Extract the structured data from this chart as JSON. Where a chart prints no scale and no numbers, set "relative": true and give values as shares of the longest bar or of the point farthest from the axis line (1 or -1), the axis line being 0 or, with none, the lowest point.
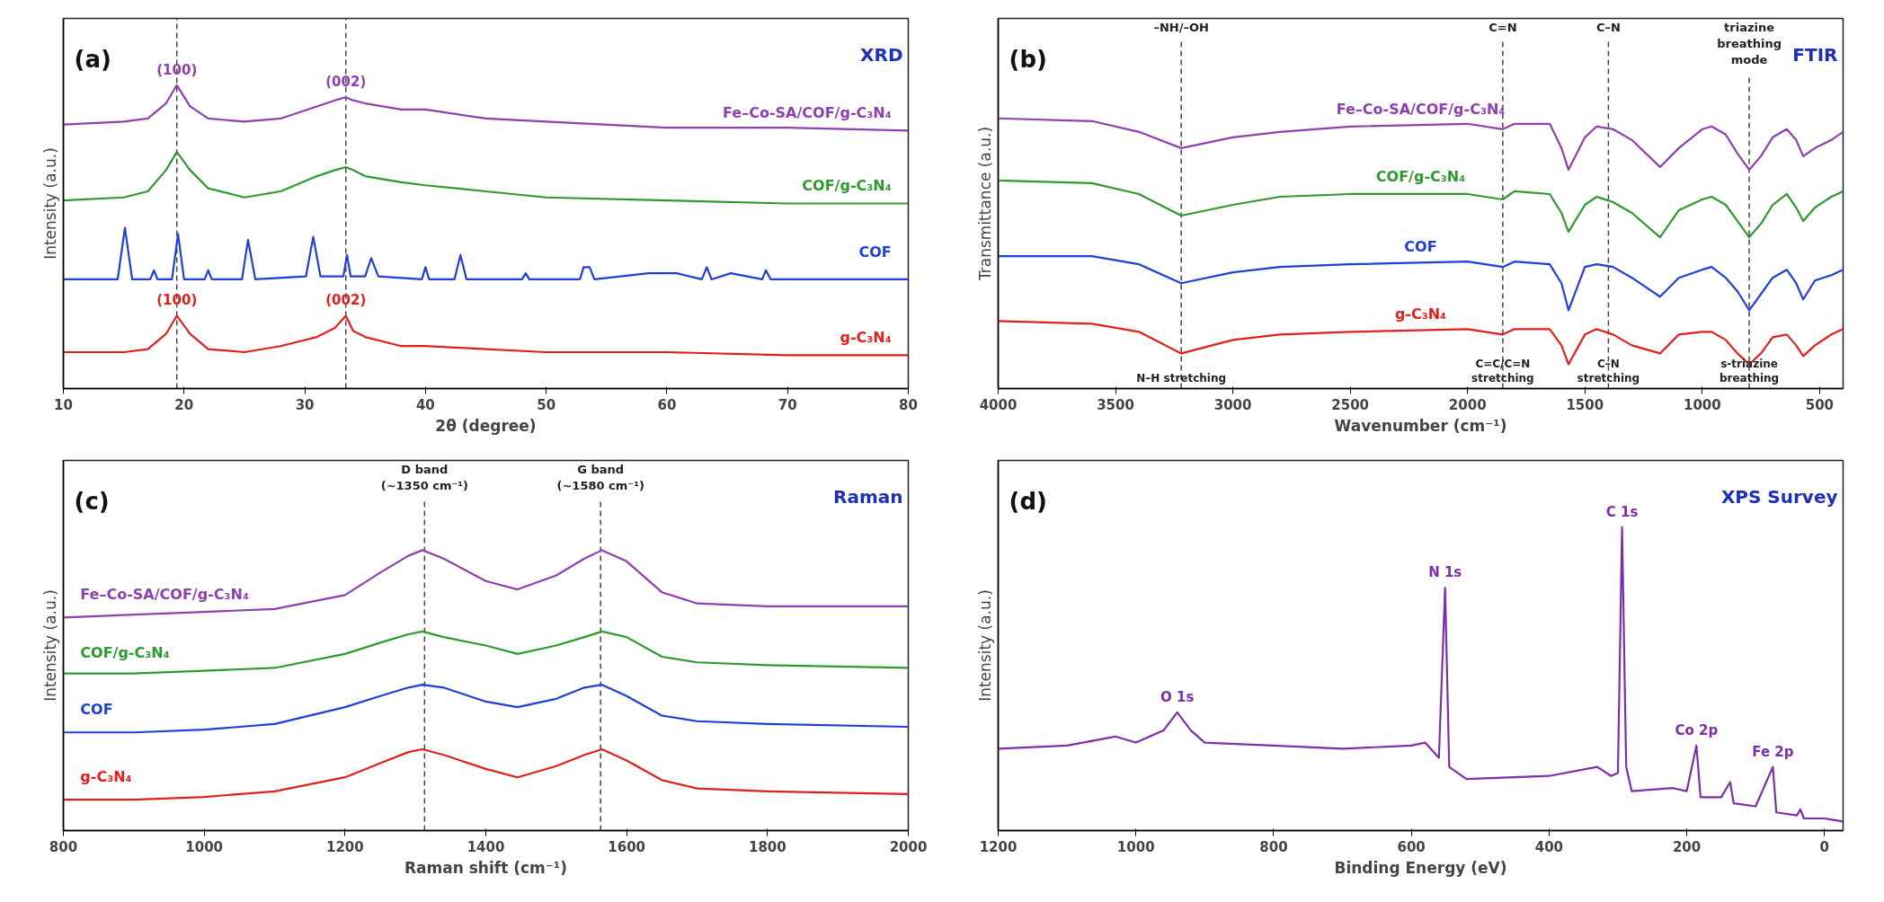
{
  "chart_data": [
    {
      "type": "line",
      "title": "XRD",
      "xlabel": "2θ (degree)",
      "ylabel": "Intensity (a.u.)",
      "relative": true,
      "xlim": [
        10,
        80
      ],
      "xticks": [
        10,
        20,
        30,
        40,
        50,
        60,
        70,
        80
      ],
      "x": [
        10,
        15,
        17,
        18.5,
        19.4,
        20.5,
        22,
        25,
        28,
        31,
        32.5,
        33.4,
        34,
        35,
        38,
        40,
        45,
        50,
        60,
        70,
        80
      ],
      "series": [
        {
          "name": "Fe–Co-SA/COF/g-C₃N₄",
          "color": "#8e3fb0",
          "values": [
            0.87,
            0.88,
            0.89,
            0.94,
            1.0,
            0.93,
            0.89,
            0.88,
            0.89,
            0.93,
            0.95,
            0.96,
            0.95,
            0.94,
            0.92,
            0.92,
            0.89,
            0.88,
            0.86,
            0.86,
            0.85
          ]
        },
        {
          "name": "COF/g-C₃N₄",
          "color": "#2e9a2e",
          "values": [
            0.62,
            0.63,
            0.65,
            0.72,
            0.78,
            0.72,
            0.66,
            0.63,
            0.65,
            0.7,
            0.72,
            0.73,
            0.72,
            0.7,
            0.68,
            0.67,
            0.65,
            0.63,
            0.62,
            0.61,
            0.61
          ]
        },
        {
          "name": "COF",
          "color": "#1f3fd6",
          "x": [
            10,
            14.5,
            15.1,
            15.7,
            17.2,
            17.5,
            17.8,
            19,
            19.5,
            20,
            21.7,
            22,
            22.3,
            24.8,
            25.3,
            25.9,
            30.1,
            30.7,
            31.3,
            33.2,
            33.5,
            33.8,
            35,
            35.5,
            36.1,
            39.7,
            40,
            40.3,
            42.4,
            42.9,
            43.4,
            48,
            48.3,
            48.6,
            52.8,
            53.1,
            53.6,
            54,
            58.5,
            60.8,
            62.9,
            63.3,
            63.7,
            65.3,
            67.9,
            68.2,
            68.6,
            80
          ],
          "values": [
            0.36,
            0.36,
            0.53,
            0.36,
            0.36,
            0.39,
            0.36,
            0.36,
            0.51,
            0.36,
            0.36,
            0.39,
            0.36,
            0.36,
            0.49,
            0.36,
            0.37,
            0.5,
            0.37,
            0.37,
            0.44,
            0.37,
            0.37,
            0.43,
            0.37,
            0.36,
            0.4,
            0.36,
            0.36,
            0.44,
            0.36,
            0.36,
            0.38,
            0.36,
            0.36,
            0.4,
            0.4,
            0.36,
            0.38,
            0.38,
            0.36,
            0.4,
            0.36,
            0.38,
            0.36,
            0.39,
            0.36,
            0.36
          ]
        },
        {
          "name": "g-C₃N₄",
          "color": "#e0201c",
          "values": [
            0.12,
            0.12,
            0.13,
            0.18,
            0.24,
            0.18,
            0.13,
            0.12,
            0.14,
            0.17,
            0.2,
            0.24,
            0.19,
            0.17,
            0.14,
            0.14,
            0.13,
            0.12,
            0.12,
            0.11,
            0.11
          ]
        }
      ],
      "ref_lines": [
        {
          "axis": "x",
          "value": 19.4,
          "color": "#444444",
          "line_style": "dashed"
        },
        {
          "axis": "x",
          "value": 33.4,
          "color": "#444444",
          "line_style": "dashed"
        }
      ],
      "annotations": [
        "(a)",
        {
          "text": "(100)",
          "x": 19.4,
          "y": 1.0
        },
        {
          "text": "(002)",
          "x": 33.4,
          "y": 0.96
        },
        {
          "text": "(100)",
          "x": 19.4,
          "y": 0.24
        },
        {
          "text": "(002)",
          "x": 33.4,
          "y": 0.24
        }
      ]
    },
    {
      "type": "line",
      "title": "FTIR",
      "xlabel": "Wavenumber (cm⁻¹)",
      "ylabel": "Transmittance (a.u.)",
      "relative": true,
      "xlim": [
        4000,
        400
      ],
      "xticks": [
        4000,
        3500,
        3000,
        2500,
        2000,
        1500,
        1000,
        500
      ],
      "x": [
        4000,
        3600,
        3400,
        3220,
        3000,
        2800,
        2500,
        2000,
        1850,
        1800,
        1650,
        1600,
        1570,
        1500,
        1450,
        1380,
        1300,
        1180,
        1100,
        1000,
        960,
        900,
        850,
        800,
        750,
        700,
        640,
        600,
        570,
        520,
        450,
        400
      ],
      "series": [
        {
          "name": "Fe–Co-SA/COF/g-C₃N₄",
          "color": "#8e3fb0",
          "values": [
            1.0,
            0.99,
            0.95,
            0.89,
            0.93,
            0.95,
            0.97,
            0.98,
            0.96,
            0.98,
            0.98,
            0.89,
            0.81,
            0.93,
            0.97,
            0.96,
            0.92,
            0.82,
            0.89,
            0.96,
            0.97,
            0.94,
            0.87,
            0.81,
            0.86,
            0.93,
            0.96,
            0.92,
            0.86,
            0.89,
            0.92,
            0.95
          ]
        },
        {
          "name": "COF/g-C₃N₄",
          "color": "#2e9a2e",
          "values": [
            0.77,
            0.76,
            0.72,
            0.64,
            0.68,
            0.71,
            0.72,
            0.72,
            0.7,
            0.73,
            0.72,
            0.65,
            0.58,
            0.68,
            0.71,
            0.69,
            0.65,
            0.56,
            0.66,
            0.7,
            0.71,
            0.68,
            0.62,
            0.56,
            0.61,
            0.68,
            0.72,
            0.67,
            0.62,
            0.67,
            0.71,
            0.73
          ]
        },
        {
          "name": "COF",
          "color": "#1f3fd6",
          "values": [
            0.49,
            0.49,
            0.46,
            0.39,
            0.43,
            0.45,
            0.46,
            0.47,
            0.45,
            0.47,
            0.46,
            0.39,
            0.29,
            0.45,
            0.46,
            0.45,
            0.41,
            0.34,
            0.41,
            0.44,
            0.45,
            0.41,
            0.36,
            0.29,
            0.35,
            0.41,
            0.44,
            0.39,
            0.33,
            0.4,
            0.42,
            0.44
          ]
        },
        {
          "name": "g-C₃N₄",
          "color": "#e0201c",
          "values": [
            0.25,
            0.24,
            0.21,
            0.13,
            0.18,
            0.2,
            0.21,
            0.22,
            0.2,
            0.22,
            0.22,
            0.16,
            0.09,
            0.2,
            0.22,
            0.2,
            0.16,
            0.13,
            0.2,
            0.21,
            0.21,
            0.18,
            0.13,
            0.09,
            0.13,
            0.19,
            0.2,
            0.16,
            0.12,
            0.16,
            0.2,
            0.22
          ]
        }
      ],
      "ref_lines": [
        {
          "axis": "x",
          "value": 3220,
          "label": "–NH/–OH",
          "color": "#444444",
          "line_style": "dashed"
        },
        {
          "axis": "x",
          "value": 1850,
          "label": "C=N",
          "color": "#444444",
          "line_style": "dashed"
        },
        {
          "axis": "x",
          "value": 1400,
          "label": "C–N",
          "color": "#444444",
          "line_style": "dashed"
        },
        {
          "axis": "x",
          "value": 800,
          "label": "triazine\nbreathing\nmode",
          "color": "#444444",
          "line_style": "dashed"
        }
      ],
      "annotations": [
        "(b)",
        {
          "text": "N–H stretching",
          "x": 3220,
          "y": 0.01
        },
        {
          "text": "C=C/C=N\nstretching",
          "x": 1850,
          "y": 0.01
        },
        {
          "text": "C–N\nstretching",
          "x": 1400,
          "y": 0.01
        },
        {
          "text": "s-triazine\nbreathing",
          "x": 800,
          "y": 0.01
        }
      ]
    },
    {
      "type": "line",
      "title": "Raman",
      "xlabel": "Raman shift (cm⁻¹)",
      "ylabel": "Intensity (a.u.)",
      "relative": true,
      "xlim": [
        800,
        2000
      ],
      "xticks": [
        800,
        1000,
        1200,
        1400,
        1600,
        1800,
        2000
      ],
      "x": [
        800,
        900,
        1000,
        1100,
        1200,
        1250,
        1290,
        1310,
        1340,
        1400,
        1445,
        1500,
        1540,
        1565,
        1600,
        1650,
        1700,
        1800,
        2000
      ],
      "series": [
        {
          "name": "Fe–Co-SA/COF/g-C₃N₄",
          "color": "#8e3fb0",
          "values": [
            0.76,
            0.77,
            0.78,
            0.79,
            0.84,
            0.92,
            0.98,
            1.0,
            0.97,
            0.89,
            0.86,
            0.91,
            0.97,
            1.0,
            0.96,
            0.85,
            0.81,
            0.8,
            0.8
          ]
        },
        {
          "name": "COF/g-C₃N₄",
          "color": "#2e9a2e",
          "values": [
            0.56,
            0.56,
            0.57,
            0.58,
            0.63,
            0.67,
            0.7,
            0.71,
            0.69,
            0.66,
            0.63,
            0.66,
            0.69,
            0.71,
            0.69,
            0.62,
            0.6,
            0.59,
            0.58
          ]
        },
        {
          "name": "COF",
          "color": "#1f3fd6",
          "values": [
            0.35,
            0.35,
            0.36,
            0.38,
            0.44,
            0.48,
            0.51,
            0.52,
            0.51,
            0.46,
            0.44,
            0.47,
            0.51,
            0.52,
            0.48,
            0.41,
            0.39,
            0.38,
            0.37
          ]
        },
        {
          "name": "g-C₃N₄",
          "color": "#e0201c",
          "values": [
            0.11,
            0.11,
            0.12,
            0.14,
            0.19,
            0.24,
            0.28,
            0.29,
            0.27,
            0.22,
            0.19,
            0.23,
            0.27,
            0.29,
            0.25,
            0.18,
            0.15,
            0.14,
            0.13
          ]
        }
      ],
      "ref_lines": [
        {
          "axis": "x",
          "value": 1313,
          "label": "D band\n(~1350 cm⁻¹)",
          "color": "#444444",
          "line_style": "dashed"
        },
        {
          "axis": "x",
          "value": 1563,
          "label": "G band\n(~1580 cm⁻¹)",
          "color": "#444444",
          "line_style": "dashed"
        }
      ],
      "annotations": [
        "(c)"
      ]
    },
    {
      "type": "line",
      "title": "XPS Survey",
      "xlabel": "Binding Energy (eV)",
      "ylabel": "Intensity (a.u.)",
      "relative": true,
      "xlim": [
        1200,
        -27
      ],
      "xticks": [
        1200,
        1000,
        800,
        600,
        400,
        200,
        0
      ],
      "x": [
        1200,
        1100,
        1030,
        1000,
        960,
        940,
        920,
        900,
        800,
        700,
        600,
        580,
        560,
        551,
        545,
        520,
        400,
        330,
        310,
        300,
        294,
        288,
        280,
        220,
        200,
        186,
        180,
        150,
        137,
        132,
        100,
        75,
        70,
        40,
        35,
        30,
        0,
        -27
      ],
      "series": [
        {
          "color": "#7b2fa8",
          "values": [
            0.27,
            0.28,
            0.31,
            0.29,
            0.33,
            0.39,
            0.33,
            0.29,
            0.28,
            0.27,
            0.28,
            0.29,
            0.24,
            0.8,
            0.21,
            0.17,
            0.18,
            0.21,
            0.18,
            0.19,
            1.0,
            0.21,
            0.13,
            0.14,
            0.13,
            0.28,
            0.11,
            0.11,
            0.16,
            0.09,
            0.08,
            0.21,
            0.06,
            0.05,
            0.07,
            0.04,
            0.04,
            0.03
          ]
        }
      ],
      "annotations": [
        "(d)",
        {
          "text": "O 1s",
          "x": 940,
          "y": 0.39
        },
        {
          "text": "N 1s",
          "x": 551,
          "y": 0.8
        },
        {
          "text": "C 1s",
          "x": 294,
          "y": 1.0
        },
        {
          "text": "Co 2p",
          "x": 186,
          "y": 0.28
        },
        {
          "text": "Fe 2p",
          "x": 75,
          "y": 0.21
        }
      ]
    }
  ]
}
